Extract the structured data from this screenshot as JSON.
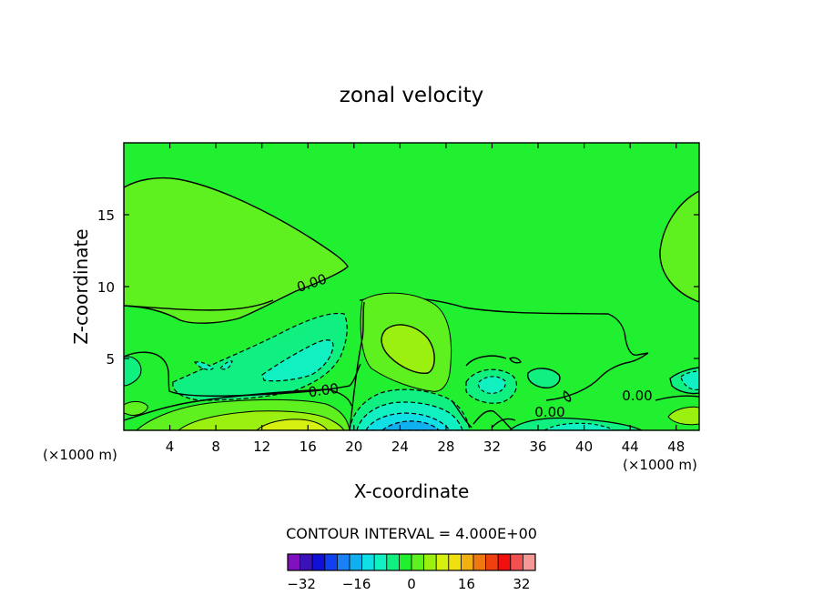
{
  "chart_data": {
    "type": "contour",
    "title": "zonal velocity",
    "xlabel": "X-coordinate",
    "ylabel": "Z-coordinate",
    "x_unit_left": "(×1000 m)",
    "x_unit_right": "(×1000 m)",
    "xlim": [
      0,
      50
    ],
    "ylim": [
      0,
      20
    ],
    "x_ticks": [
      4,
      8,
      12,
      16,
      20,
      24,
      28,
      32,
      36,
      40,
      44,
      48
    ],
    "y_ticks": [
      5,
      10,
      15
    ],
    "contour_interval_text": "CONTOUR INTERVAL = 4.000E+00",
    "contour_labels": [
      "0.00",
      "0.00",
      "0.00",
      "0.00"
    ],
    "colorbar": {
      "tick_labels": [
        "-32",
        "-16",
        "0",
        "16",
        "32"
      ],
      "tick_values": [
        -32,
        -16,
        0,
        16,
        32
      ],
      "min": -36,
      "max": 36,
      "step": 4,
      "colors": [
        "#7f0fbf",
        "#3a12b8",
        "#1010d8",
        "#1040f0",
        "#1a80f5",
        "#10b0f0",
        "#10dfe6",
        "#10f0c0",
        "#10f080",
        "#20f030",
        "#5ff020",
        "#9cf010",
        "#d6f010",
        "#f0e010",
        "#f0b010",
        "#f07810",
        "#f04010",
        "#f01010",
        "#f05050",
        "#f59898"
      ]
    },
    "regions": [
      {
        "label": "negative core near surface",
        "center": [
          25,
          0.5
        ],
        "approx_value": -24
      },
      {
        "label": "positive core near surface",
        "center": [
          15,
          0.5
        ],
        "approx_value": 16
      },
      {
        "label": "positive core aloft",
        "center": [
          24.5,
          5.8
        ],
        "approx_value": 12
      },
      {
        "label": "negative band",
        "center": [
          14,
          4.8
        ],
        "approx_value": -8
      }
    ]
  }
}
